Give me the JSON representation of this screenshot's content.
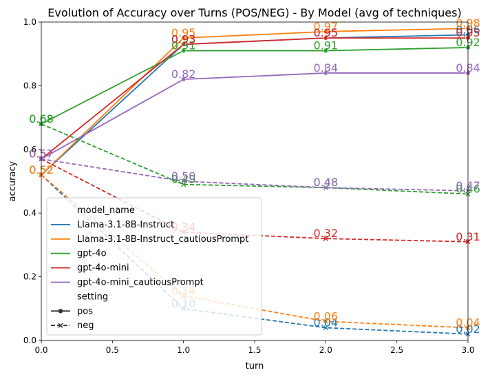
{
  "chart_data": {
    "type": "line",
    "title": "Evolution of Accuracy over Turns (POS/NEG) - By Model (avg of techniques)",
    "xlabel": "turn",
    "ylabel": "accuracy",
    "xlim": [
      0,
      3
    ],
    "ylim": [
      0,
      1
    ],
    "xticks": [
      "0.0",
      "0.5",
      "1.0",
      "1.5",
      "2.0",
      "2.5",
      "3.0"
    ],
    "yticks": [
      "0.0",
      "0.2",
      "0.4",
      "0.6",
      "0.8",
      "1.0"
    ],
    "x": [
      0,
      1,
      2,
      3
    ],
    "legend_position": "lower-left",
    "legend": {
      "hue_title": "model_name",
      "style_title": "setting",
      "style_entries": [
        "pos",
        "neg"
      ]
    },
    "series": [
      {
        "name": "Llama-3.1-8B-Instruct",
        "model": "Llama-3.1-8B-Instruct",
        "setting": "pos",
        "color": "#1f77b4",
        "values": [
          0.52,
          0.93,
          0.95,
          0.96
        ]
      },
      {
        "name": "Llama-3.1-8B-Instruct_cautiousPrompt",
        "model": "Llama-3.1-8B-Instruct_cautiousPrompt",
        "setting": "pos",
        "color": "#ff7f0e",
        "values": [
          0.52,
          0.95,
          0.97,
          0.98
        ]
      },
      {
        "name": "gpt-4o",
        "model": "gpt-4o",
        "setting": "pos",
        "color": "#2ca02c",
        "values": [
          0.68,
          0.91,
          0.91,
          0.92
        ]
      },
      {
        "name": "gpt-4o-mini",
        "model": "gpt-4o-mini",
        "setting": "pos",
        "color": "#d62728",
        "values": [
          0.57,
          0.93,
          0.95,
          0.95
        ]
      },
      {
        "name": "gpt-4o-mini_cautiousPrompt",
        "model": "gpt-4o-mini_cautiousPrompt",
        "setting": "pos",
        "color": "#9467bd",
        "values": [
          0.57,
          0.82,
          0.84,
          0.84
        ]
      },
      {
        "name": "Llama-3.1-8B-Instruct",
        "model": "Llama-3.1-8B-Instruct",
        "setting": "neg",
        "color": "#1f77b4",
        "values": [
          0.52,
          0.1,
          0.04,
          0.02
        ]
      },
      {
        "name": "Llama-3.1-8B-Instruct_cautiousPrompt",
        "model": "Llama-3.1-8B-Instruct_cautiousPrompt",
        "setting": "neg",
        "color": "#ff7f0e",
        "values": [
          0.52,
          0.14,
          0.06,
          0.04
        ]
      },
      {
        "name": "gpt-4o",
        "model": "gpt-4o",
        "setting": "neg",
        "color": "#2ca02c",
        "values": [
          0.68,
          0.49,
          0.48,
          0.46
        ]
      },
      {
        "name": "gpt-4o-mini",
        "model": "gpt-4o-mini",
        "setting": "neg",
        "color": "#d62728",
        "values": [
          0.57,
          0.34,
          0.32,
          0.31
        ]
      },
      {
        "name": "gpt-4o-mini_cautiousPrompt",
        "model": "gpt-4o-mini_cautiousPrompt",
        "setting": "neg",
        "color": "#9467bd",
        "values": [
          0.57,
          0.5,
          0.48,
          0.47
        ]
      }
    ]
  }
}
